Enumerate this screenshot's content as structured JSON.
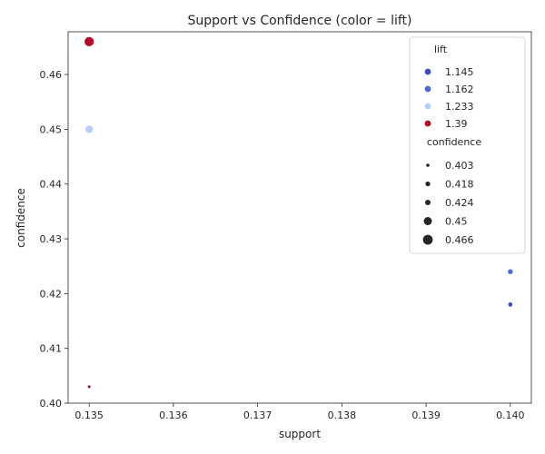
{
  "chart_data": {
    "type": "scatter",
    "title": "Support vs Confidence (color = lift)",
    "xlabel": "support",
    "ylabel": "confidence",
    "xlim": [
      0.13475,
      0.14025
    ],
    "ylim": [
      0.4,
      0.4678
    ],
    "x_ticks": [
      "0.135",
      "0.136",
      "0.137",
      "0.138",
      "0.139",
      "0.140"
    ],
    "x_tick_values": [
      0.135,
      0.136,
      0.137,
      0.138,
      0.139,
      0.14
    ],
    "y_ticks": [
      "0.40",
      "0.41",
      "0.42",
      "0.43",
      "0.44",
      "0.45",
      "0.46"
    ],
    "y_tick_values": [
      0.4,
      0.41,
      0.42,
      0.43,
      0.44,
      0.45,
      0.46
    ],
    "grid": false,
    "points": [
      {
        "support": 0.135,
        "confidence": 0.466,
        "lift": 1.39
      },
      {
        "support": 0.135,
        "confidence": 0.45,
        "lift": 1.233
      },
      {
        "support": 0.135,
        "confidence": 0.403,
        "lift": 1.39
      },
      {
        "support": 0.14,
        "confidence": 0.424,
        "lift": 1.162
      },
      {
        "support": 0.14,
        "confidence": 0.418,
        "lift": 1.145
      }
    ],
    "legend": {
      "placement": "upper right",
      "hue_title": "lift",
      "hue_entries": [
        {
          "label": "1.145",
          "color": "#3b4cc0"
        },
        {
          "label": "1.162",
          "color": "#4a69d9"
        },
        {
          "label": "1.233",
          "color": "#b5cdf9"
        },
        {
          "label": "1.39",
          "color": "#b40426"
        }
      ],
      "size_title": "confidence",
      "size_entries": [
        {
          "label": "0.403",
          "value": 0.403
        },
        {
          "label": "0.418",
          "value": 0.418
        },
        {
          "label": "0.424",
          "value": 0.424
        },
        {
          "label": "0.45",
          "value": 0.45
        },
        {
          "label": "0.466",
          "value": 0.466
        }
      ]
    }
  }
}
